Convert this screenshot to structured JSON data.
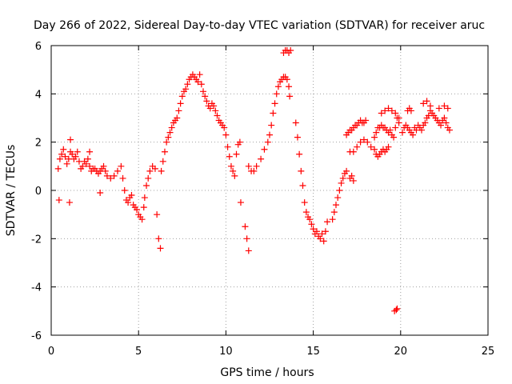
{
  "chart_data": {
    "type": "scatter",
    "title": "Day 266 of 2022, Sidereal Day-to-day VTEC variation (SDTVAR) for receiver aruc",
    "xlabel": "GPS time / hours",
    "ylabel": "SDTVAR / TECUs",
    "xlim": [
      0,
      25
    ],
    "ylim": [
      -6,
      6
    ],
    "xticks": [
      0,
      5,
      10,
      15,
      20,
      25
    ],
    "yticks": [
      -6,
      -4,
      -2,
      0,
      2,
      4,
      6
    ],
    "xtick_labels": [
      "0",
      "5",
      "10",
      "15",
      "20",
      "25"
    ],
    "ytick_labels": [
      "-6",
      "-4",
      "-2",
      "0",
      "2",
      "4",
      "6"
    ],
    "grid": true,
    "marker": "+",
    "series": [
      {
        "name": "SDTVAR",
        "color": "#ff0000",
        "points": [
          [
            0.4,
            0.9
          ],
          [
            0.5,
            1.3
          ],
          [
            0.6,
            1.5
          ],
          [
            0.7,
            1.7
          ],
          [
            0.8,
            1.4
          ],
          [
            0.9,
            1.1
          ],
          [
            1.0,
            1.3
          ],
          [
            1.1,
            1.6
          ],
          [
            1.2,
            1.5
          ],
          [
            1.3,
            1.3
          ],
          [
            1.4,
            1.4
          ],
          [
            1.5,
            1.6
          ],
          [
            1.6,
            1.2
          ],
          [
            1.7,
            0.9
          ],
          [
            1.8,
            1.0
          ],
          [
            1.9,
            1.2
          ],
          [
            2.0,
            1.1
          ],
          [
            2.1,
            1.3
          ],
          [
            2.2,
            1.0
          ],
          [
            2.3,
            0.8
          ],
          [
            2.4,
            0.9
          ],
          [
            2.5,
            0.9
          ],
          [
            2.6,
            0.8
          ],
          [
            2.7,
            0.7
          ],
          [
            2.8,
            0.8
          ],
          [
            2.9,
            0.9
          ],
          [
            3.0,
            1.0
          ],
          [
            3.1,
            0.8
          ],
          [
            3.2,
            0.6
          ],
          [
            3.4,
            0.5
          ],
          [
            3.6,
            0.6
          ],
          [
            3.8,
            0.8
          ],
          [
            4.0,
            1.0
          ],
          [
            4.1,
            0.5
          ],
          [
            4.2,
            0.0
          ],
          [
            4.3,
            -0.4
          ],
          [
            4.4,
            -0.5
          ],
          [
            4.5,
            -0.3
          ],
          [
            4.6,
            -0.2
          ],
          [
            4.7,
            -0.6
          ],
          [
            4.8,
            -0.7
          ],
          [
            4.9,
            -0.8
          ],
          [
            5.0,
            -1.0
          ],
          [
            5.1,
            -1.1
          ],
          [
            5.2,
            -1.2
          ],
          [
            5.3,
            -0.7
          ],
          [
            5.35,
            -0.3
          ],
          [
            5.45,
            0.2
          ],
          [
            5.55,
            0.5
          ],
          [
            5.65,
            0.8
          ],
          [
            5.8,
            1.0
          ],
          [
            5.95,
            0.9
          ],
          [
            6.05,
            -1.0
          ],
          [
            6.15,
            -2.0
          ],
          [
            6.25,
            -2.4
          ],
          [
            6.3,
            0.8
          ],
          [
            6.4,
            1.2
          ],
          [
            6.5,
            1.6
          ],
          [
            6.6,
            2.0
          ],
          [
            6.7,
            2.2
          ],
          [
            6.8,
            2.4
          ],
          [
            6.9,
            2.6
          ],
          [
            7.0,
            2.8
          ],
          [
            7.1,
            2.9
          ],
          [
            7.2,
            3.0
          ],
          [
            7.3,
            3.3
          ],
          [
            7.4,
            3.6
          ],
          [
            7.5,
            3.9
          ],
          [
            7.6,
            4.1
          ],
          [
            7.7,
            4.2
          ],
          [
            7.8,
            4.4
          ],
          [
            7.9,
            4.6
          ],
          [
            8.0,
            4.7
          ],
          [
            8.1,
            4.8
          ],
          [
            8.2,
            4.7
          ],
          [
            8.3,
            4.6
          ],
          [
            8.4,
            4.5
          ],
          [
            8.5,
            4.8
          ],
          [
            8.6,
            4.4
          ],
          [
            8.7,
            4.1
          ],
          [
            8.8,
            3.9
          ],
          [
            8.9,
            3.7
          ],
          [
            9.0,
            3.5
          ],
          [
            9.1,
            3.4
          ],
          [
            9.2,
            3.6
          ],
          [
            9.3,
            3.5
          ],
          [
            9.4,
            3.3
          ],
          [
            9.5,
            3.1
          ],
          [
            9.6,
            2.9
          ],
          [
            9.7,
            2.8
          ],
          [
            9.8,
            2.7
          ],
          [
            9.9,
            2.6
          ],
          [
            10.0,
            2.3
          ],
          [
            10.1,
            1.8
          ],
          [
            10.2,
            1.4
          ],
          [
            10.3,
            1.0
          ],
          [
            10.4,
            0.8
          ],
          [
            10.5,
            0.6
          ],
          [
            10.6,
            1.5
          ],
          [
            10.7,
            1.9
          ],
          [
            10.8,
            2.0
          ],
          [
            10.85,
            -0.5
          ],
          [
            11.1,
            -1.5
          ],
          [
            11.2,
            -2.0
          ],
          [
            11.3,
            -2.5
          ],
          [
            11.3,
            1.0
          ],
          [
            11.45,
            0.8
          ],
          [
            11.6,
            0.8
          ],
          [
            11.75,
            1.0
          ],
          [
            12.0,
            1.3
          ],
          [
            12.2,
            1.7
          ],
          [
            12.4,
            2.0
          ],
          [
            12.5,
            2.3
          ],
          [
            12.6,
            2.7
          ],
          [
            12.7,
            3.2
          ],
          [
            12.8,
            3.6
          ],
          [
            12.9,
            4.0
          ],
          [
            13.0,
            4.3
          ],
          [
            13.1,
            4.5
          ],
          [
            13.2,
            4.6
          ],
          [
            13.3,
            4.7
          ],
          [
            13.4,
            4.7
          ],
          [
            13.5,
            4.6
          ],
          [
            13.6,
            4.3
          ],
          [
            13.65,
            3.9
          ],
          [
            13.3,
            5.7
          ],
          [
            13.4,
            5.8
          ],
          [
            13.5,
            5.8
          ],
          [
            13.6,
            5.7
          ],
          [
            13.7,
            5.8
          ],
          [
            14.0,
            2.8
          ],
          [
            14.1,
            2.2
          ],
          [
            14.2,
            1.5
          ],
          [
            14.3,
            0.8
          ],
          [
            14.4,
            0.2
          ],
          [
            14.5,
            -0.5
          ],
          [
            14.6,
            -0.9
          ],
          [
            14.7,
            -1.1
          ],
          [
            14.8,
            -1.2
          ],
          [
            14.9,
            -1.4
          ],
          [
            15.0,
            -1.6
          ],
          [
            15.1,
            -1.8
          ],
          [
            15.2,
            -1.7
          ],
          [
            15.3,
            -1.9
          ],
          [
            15.4,
            -2.0
          ],
          [
            15.5,
            -1.8
          ],
          [
            15.6,
            -2.1
          ],
          [
            15.7,
            -1.7
          ],
          [
            15.8,
            -1.3
          ],
          [
            16.1,
            -1.2
          ],
          [
            16.2,
            -0.9
          ],
          [
            16.3,
            -0.6
          ],
          [
            16.4,
            -0.3
          ],
          [
            16.5,
            0.0
          ],
          [
            16.6,
            0.3
          ],
          [
            16.7,
            0.5
          ],
          [
            16.8,
            0.7
          ],
          [
            16.9,
            0.8
          ],
          [
            17.1,
            0.5
          ],
          [
            17.2,
            0.6
          ],
          [
            17.3,
            0.4
          ],
          [
            16.9,
            2.3
          ],
          [
            17.0,
            2.4
          ],
          [
            17.1,
            2.5
          ],
          [
            17.2,
            2.5
          ],
          [
            17.3,
            2.6
          ],
          [
            17.4,
            2.7
          ],
          [
            17.5,
            2.7
          ],
          [
            17.6,
            2.8
          ],
          [
            17.7,
            2.9
          ],
          [
            17.8,
            2.8
          ],
          [
            17.9,
            2.8
          ],
          [
            18.0,
            2.9
          ],
          [
            17.1,
            1.6
          ],
          [
            17.3,
            1.6
          ],
          [
            17.5,
            1.8
          ],
          [
            17.7,
            2.0
          ],
          [
            17.9,
            2.1
          ],
          [
            18.1,
            2.0
          ],
          [
            18.3,
            1.8
          ],
          [
            18.5,
            1.7
          ],
          [
            18.6,
            1.5
          ],
          [
            18.7,
            1.4
          ],
          [
            18.8,
            1.5
          ],
          [
            18.9,
            1.6
          ],
          [
            19.0,
            1.7
          ],
          [
            19.1,
            1.6
          ],
          [
            19.2,
            1.7
          ],
          [
            19.3,
            1.8
          ],
          [
            18.5,
            2.2
          ],
          [
            18.6,
            2.4
          ],
          [
            18.7,
            2.6
          ],
          [
            18.8,
            2.6
          ],
          [
            18.9,
            2.7
          ],
          [
            19.0,
            2.6
          ],
          [
            19.1,
            2.6
          ],
          [
            19.2,
            2.5
          ],
          [
            19.3,
            2.4
          ],
          [
            19.4,
            2.5
          ],
          [
            19.5,
            2.3
          ],
          [
            19.6,
            2.2
          ],
          [
            19.7,
            2.6
          ],
          [
            19.8,
            3.0
          ],
          [
            19.9,
            2.8
          ],
          [
            18.9,
            3.2
          ],
          [
            19.1,
            3.3
          ],
          [
            19.3,
            3.4
          ],
          [
            19.5,
            3.3
          ],
          [
            19.7,
            3.2
          ],
          [
            19.9,
            3.0
          ],
          [
            19.65,
            -5.0
          ],
          [
            19.75,
            -4.95
          ],
          [
            19.8,
            -4.9
          ],
          [
            20.1,
            2.4
          ],
          [
            20.2,
            2.6
          ],
          [
            20.3,
            2.7
          ],
          [
            20.4,
            2.6
          ],
          [
            20.5,
            2.5
          ],
          [
            20.6,
            2.4
          ],
          [
            20.7,
            2.3
          ],
          [
            20.8,
            2.6
          ],
          [
            20.9,
            2.5
          ],
          [
            21.0,
            2.7
          ],
          [
            21.1,
            2.6
          ],
          [
            21.2,
            2.5
          ],
          [
            21.3,
            2.7
          ],
          [
            21.4,
            2.8
          ],
          [
            21.5,
            3.0
          ],
          [
            21.6,
            3.1
          ],
          [
            21.7,
            3.3
          ],
          [
            21.8,
            3.2
          ],
          [
            21.9,
            3.1
          ],
          [
            22.0,
            3.0
          ],
          [
            22.1,
            2.9
          ],
          [
            22.2,
            2.8
          ],
          [
            22.3,
            2.7
          ],
          [
            22.4,
            2.9
          ],
          [
            22.5,
            3.0
          ],
          [
            22.6,
            2.8
          ],
          [
            22.7,
            2.6
          ],
          [
            22.8,
            2.5
          ],
          [
            20.4,
            3.3
          ],
          [
            20.5,
            3.4
          ],
          [
            20.6,
            3.3
          ],
          [
            21.3,
            3.6
          ],
          [
            21.5,
            3.7
          ],
          [
            21.7,
            3.5
          ],
          [
            22.2,
            3.4
          ],
          [
            22.5,
            3.5
          ],
          [
            22.7,
            3.4
          ],
          [
            0.45,
            -0.4
          ],
          [
            1.05,
            -0.5
          ],
          [
            2.8,
            -0.1
          ],
          [
            1.1,
            2.1
          ],
          [
            2.2,
            1.6
          ]
        ]
      }
    ]
  }
}
